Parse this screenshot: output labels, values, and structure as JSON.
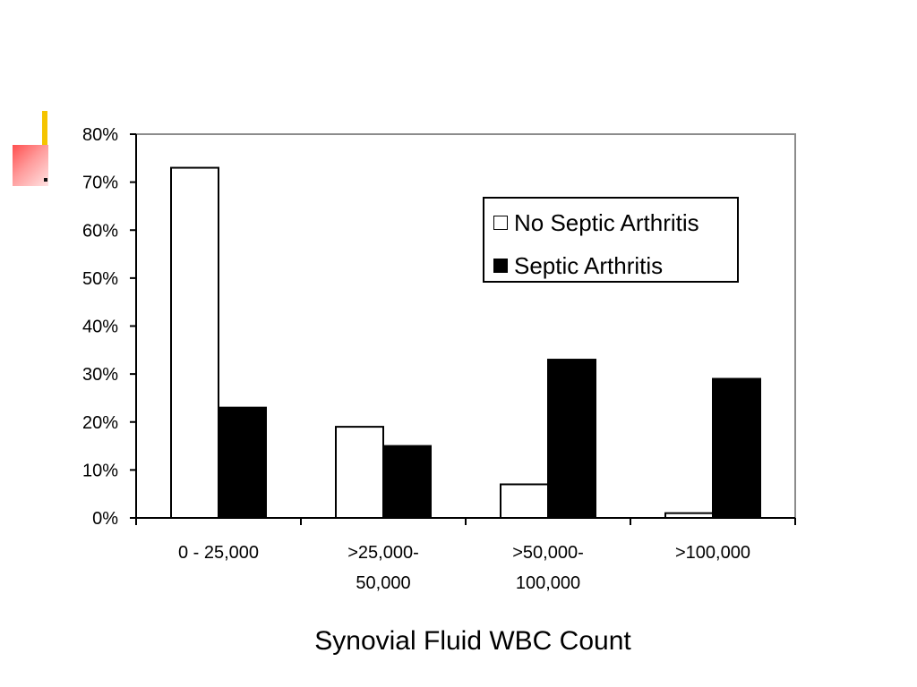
{
  "chart_data": {
    "type": "bar",
    "categories": [
      [
        "0 - 25,000"
      ],
      [
        ">25,000-",
        "50,000"
      ],
      [
        ">50,000-",
        "100,000"
      ],
      [
        ">100,000"
      ]
    ],
    "series": [
      {
        "name": "No Septic Arthritis",
        "color": "#ffffff",
        "values": [
          73,
          19,
          7,
          1
        ]
      },
      {
        "name": "Septic Arthritis",
        "color": "#000000",
        "values": [
          23,
          15,
          33,
          29
        ]
      }
    ],
    "xlabel": "Synovial Fluid WBC Count",
    "ylabel": "",
    "ylim": [
      0,
      80
    ],
    "yticks": [
      "0%",
      "10%",
      "20%",
      "30%",
      "40%",
      "50%",
      "60%",
      "70%",
      "80%"
    ],
    "grid": false,
    "legend_position": "top-right"
  },
  "decoration": {
    "accent_yellow": "#f5c400",
    "accent_red": "#ff4f4f"
  }
}
